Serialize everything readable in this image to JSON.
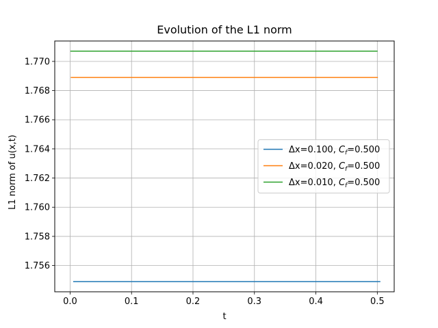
{
  "chart_data": {
    "type": "line",
    "title": "Evolution of the L1 norm",
    "xlabel": "t",
    "ylabel": "L1 norm of u(x,t)",
    "xlim": [
      -0.025,
      0.5275
    ],
    "ylim": [
      1.7542,
      1.7714
    ],
    "xticks": [
      0.0,
      0.1,
      0.2,
      0.3,
      0.4,
      0.5
    ],
    "xtick_labels": [
      "0.0",
      "0.1",
      "0.2",
      "0.3",
      "0.4",
      "0.5"
    ],
    "yticks": [
      1.756,
      1.758,
      1.76,
      1.762,
      1.764,
      1.766,
      1.768,
      1.77
    ],
    "ytick_labels": [
      "1.756",
      "1.758",
      "1.760",
      "1.762",
      "1.764",
      "1.766",
      "1.768",
      "1.770"
    ],
    "grid": true,
    "legend_position": "center-right",
    "series": [
      {
        "name_prefix": "Δx=0.100, ",
        "name_var": "C",
        "name_sub": "f",
        "name_suffix": "=0.500",
        "color": "#1f77b4",
        "x": [
          0.005,
          0.505
        ],
        "y": [
          1.7549,
          1.7549
        ]
      },
      {
        "name_prefix": "Δx=0.020, ",
        "name_var": "C",
        "name_sub": "f",
        "name_suffix": "=0.500",
        "color": "#ff7f0e",
        "x": [
          0.001,
          0.501
        ],
        "y": [
          1.7689,
          1.7689
        ]
      },
      {
        "name_prefix": "Δx=0.010, ",
        "name_var": "C",
        "name_sub": "f",
        "name_suffix": "=0.500",
        "color": "#2ca02c",
        "x": [
          0.0005,
          0.5005
        ],
        "y": [
          1.7707,
          1.7707
        ]
      }
    ]
  }
}
